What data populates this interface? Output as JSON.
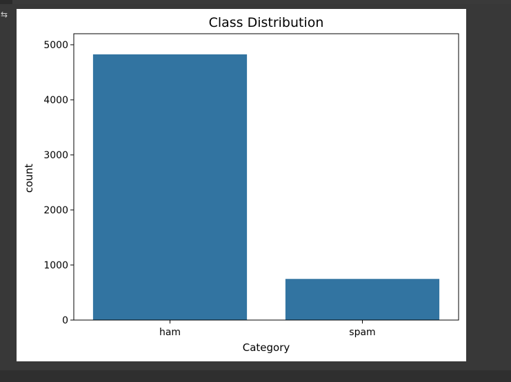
{
  "colors": {
    "bar": "#3274a1",
    "figure_background": "#ffffff",
    "page_background": "#383838"
  },
  "output_icon": "output-settings-icon",
  "chart_data": {
    "type": "bar",
    "title": "Class Distribution",
    "xlabel": "Category",
    "ylabel": "count",
    "categories": [
      "ham",
      "spam"
    ],
    "values": [
      4825,
      747
    ],
    "ylim": [
      0,
      5200
    ],
    "yticks": [
      0,
      1000,
      2000,
      3000,
      4000,
      5000
    ],
    "ytick_labels": [
      "0",
      "1000",
      "2000",
      "3000",
      "4000",
      "5000"
    ],
    "grid": false,
    "legend": "none"
  }
}
